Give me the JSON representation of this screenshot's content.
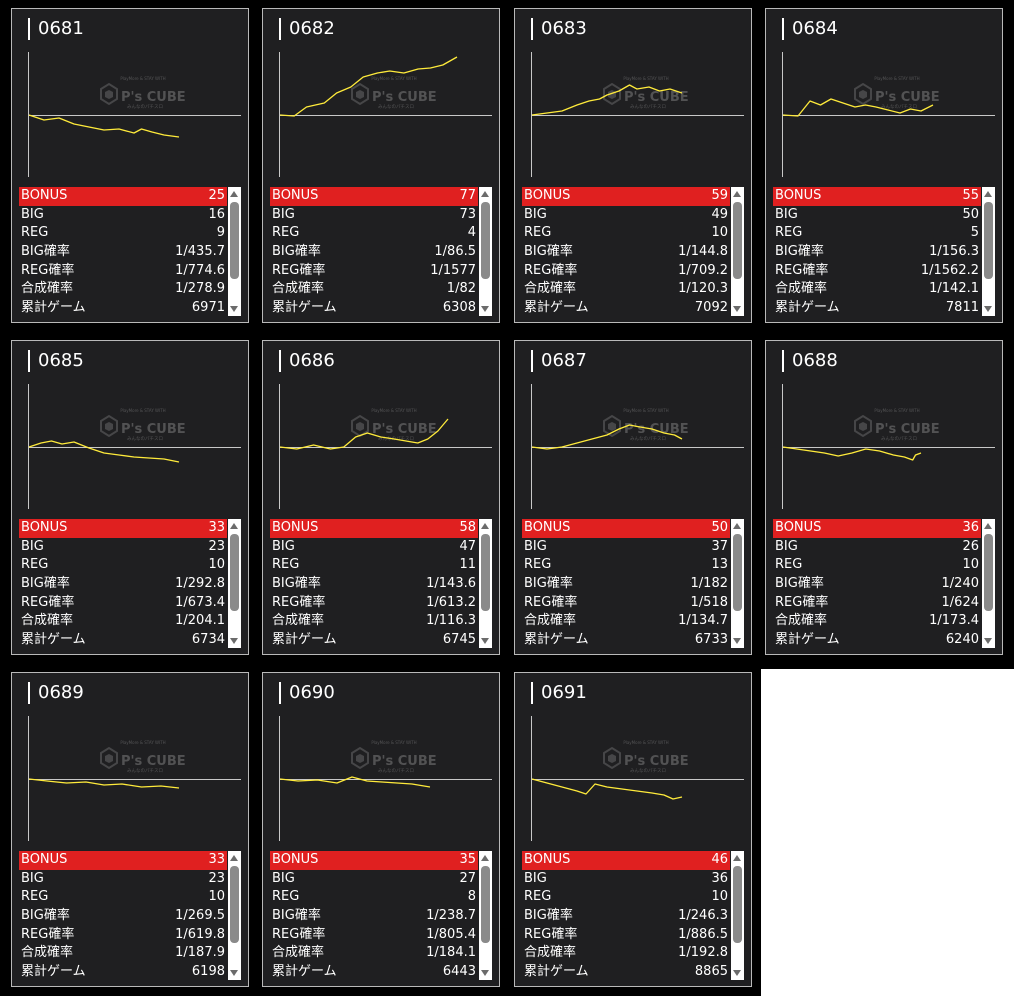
{
  "colors": {
    "background": "#000000",
    "card": "#1f1f21",
    "bonus_row": "#e02020",
    "graph_line": "#ffeb3b",
    "axis": "#c8c8c8"
  },
  "watermark": {
    "brand": "P's CUBE",
    "tagline": "PlayMore & STAY WITH",
    "sub": "みんなのパチスロ"
  },
  "labels": {
    "bonus": "BONUS",
    "big": "BIG",
    "reg": "REG",
    "big_rate": "BIG確率",
    "reg_rate": "REG確率",
    "combined_rate": "合成確率",
    "total_games": "累計ゲーム"
  },
  "machines": [
    {
      "id": "0681",
      "bonus": "25",
      "big": "16",
      "reg": "9",
      "big_rate": "1/435.7",
      "reg_rate": "1/774.6",
      "combined_rate": "1/278.9",
      "total_games": "6971",
      "trend": [
        [
          0,
          0
        ],
        [
          0.1,
          -5
        ],
        [
          0.2,
          -3
        ],
        [
          0.3,
          -9
        ],
        [
          0.4,
          -12
        ],
        [
          0.5,
          -15
        ],
        [
          0.6,
          -14
        ],
        [
          0.7,
          -18
        ],
        [
          0.75,
          -14
        ],
        [
          0.82,
          -17
        ],
        [
          0.9,
          -20
        ],
        [
          1,
          -22
        ]
      ]
    },
    {
      "id": "0682",
      "bonus": "77",
      "big": "73",
      "reg": "4",
      "big_rate": "1/86.5",
      "reg_rate": "1/1577",
      "combined_rate": "1/82",
      "total_games": "6308",
      "trend": [
        [
          0,
          0
        ],
        [
          0.08,
          -1
        ],
        [
          0.15,
          8
        ],
        [
          0.25,
          12
        ],
        [
          0.32,
          22
        ],
        [
          0.4,
          28
        ],
        [
          0.47,
          38
        ],
        [
          0.55,
          42
        ],
        [
          0.62,
          44
        ],
        [
          0.7,
          42
        ],
        [
          0.78,
          46
        ],
        [
          0.85,
          47
        ],
        [
          0.92,
          50
        ],
        [
          1,
          58
        ]
      ]
    },
    {
      "id": "0683",
      "bonus": "59",
      "big": "49",
      "reg": "10",
      "big_rate": "1/144.8",
      "reg_rate": "1/709.2",
      "combined_rate": "1/120.3",
      "total_games": "7092",
      "trend": [
        [
          0,
          0
        ],
        [
          0.1,
          2
        ],
        [
          0.2,
          4
        ],
        [
          0.3,
          10
        ],
        [
          0.38,
          14
        ],
        [
          0.45,
          16
        ],
        [
          0.5,
          20
        ],
        [
          0.58,
          24
        ],
        [
          0.65,
          30
        ],
        [
          0.7,
          26
        ],
        [
          0.78,
          28
        ],
        [
          0.85,
          24
        ],
        [
          0.92,
          26
        ],
        [
          1,
          22
        ]
      ]
    },
    {
      "id": "0684",
      "bonus": "55",
      "big": "50",
      "reg": "5",
      "big_rate": "1/156.3",
      "reg_rate": "1/1562.2",
      "combined_rate": "1/142.1",
      "total_games": "7811",
      "trend": [
        [
          0,
          0
        ],
        [
          0.1,
          -1
        ],
        [
          0.18,
          14
        ],
        [
          0.25,
          10
        ],
        [
          0.32,
          16
        ],
        [
          0.4,
          12
        ],
        [
          0.48,
          8
        ],
        [
          0.55,
          10
        ],
        [
          0.62,
          8
        ],
        [
          0.7,
          5
        ],
        [
          0.78,
          2
        ],
        [
          0.85,
          6
        ],
        [
          0.92,
          4
        ],
        [
          1,
          10
        ]
      ]
    },
    {
      "id": "0685",
      "bonus": "33",
      "big": "23",
      "reg": "10",
      "big_rate": "1/292.8",
      "reg_rate": "1/673.4",
      "combined_rate": "1/204.1",
      "total_games": "6734",
      "trend": [
        [
          0,
          0
        ],
        [
          0.08,
          4
        ],
        [
          0.15,
          6
        ],
        [
          0.22,
          3
        ],
        [
          0.3,
          5
        ],
        [
          0.4,
          -1
        ],
        [
          0.5,
          -6
        ],
        [
          0.6,
          -8
        ],
        [
          0.7,
          -10
        ],
        [
          0.8,
          -11
        ],
        [
          0.9,
          -12
        ],
        [
          1,
          -15
        ]
      ]
    },
    {
      "id": "0686",
      "bonus": "58",
      "big": "47",
      "reg": "11",
      "big_rate": "1/143.6",
      "reg_rate": "1/613.2",
      "combined_rate": "1/116.3",
      "total_games": "6745",
      "trend": [
        [
          0,
          0
        ],
        [
          0.1,
          -2
        ],
        [
          0.2,
          2
        ],
        [
          0.3,
          -2
        ],
        [
          0.38,
          0
        ],
        [
          0.45,
          10
        ],
        [
          0.52,
          14
        ],
        [
          0.6,
          10
        ],
        [
          0.68,
          8
        ],
        [
          0.75,
          6
        ],
        [
          0.82,
          4
        ],
        [
          0.88,
          8
        ],
        [
          0.94,
          16
        ],
        [
          1,
          28
        ]
      ]
    },
    {
      "id": "0687",
      "bonus": "50",
      "big": "37",
      "reg": "13",
      "big_rate": "1/182",
      "reg_rate": "1/518",
      "combined_rate": "1/134.7",
      "total_games": "6733",
      "trend": [
        [
          0,
          0
        ],
        [
          0.1,
          -2
        ],
        [
          0.2,
          0
        ],
        [
          0.3,
          4
        ],
        [
          0.4,
          8
        ],
        [
          0.5,
          12
        ],
        [
          0.58,
          18
        ],
        [
          0.65,
          22
        ],
        [
          0.72,
          20
        ],
        [
          0.8,
          18
        ],
        [
          0.88,
          14
        ],
        [
          0.95,
          12
        ],
        [
          1,
          8
        ]
      ]
    },
    {
      "id": "0688",
      "bonus": "36",
      "big": "26",
      "reg": "10",
      "big_rate": "1/240",
      "reg_rate": "1/624",
      "combined_rate": "1/173.4",
      "total_games": "6240",
      "trend": [
        [
          0,
          0
        ],
        [
          0.1,
          -2
        ],
        [
          0.2,
          -4
        ],
        [
          0.3,
          -6
        ],
        [
          0.4,
          -9
        ],
        [
          0.5,
          -6
        ],
        [
          0.6,
          -2
        ],
        [
          0.7,
          -4
        ],
        [
          0.8,
          -8
        ],
        [
          0.88,
          -10
        ],
        [
          0.94,
          -13
        ],
        [
          0.96,
          -8
        ],
        [
          1,
          -6
        ]
      ]
    },
    {
      "id": "0689",
      "bonus": "33",
      "big": "23",
      "reg": "10",
      "big_rate": "1/269.5",
      "reg_rate": "1/619.8",
      "combined_rate": "1/187.9",
      "total_games": "6198",
      "trend": [
        [
          0,
          0
        ],
        [
          0.12,
          -2
        ],
        [
          0.25,
          -4
        ],
        [
          0.38,
          -3
        ],
        [
          0.5,
          -6
        ],
        [
          0.62,
          -5
        ],
        [
          0.75,
          -8
        ],
        [
          0.88,
          -7
        ],
        [
          1,
          -9
        ]
      ]
    },
    {
      "id": "0690",
      "bonus": "35",
      "big": "27",
      "reg": "8",
      "big_rate": "1/238.7",
      "reg_rate": "1/805.4",
      "combined_rate": "1/184.1",
      "total_games": "6443",
      "trend": [
        [
          0,
          0
        ],
        [
          0.12,
          -2
        ],
        [
          0.25,
          -1
        ],
        [
          0.38,
          -4
        ],
        [
          0.48,
          2
        ],
        [
          0.58,
          -2
        ],
        [
          0.68,
          -3
        ],
        [
          0.78,
          -4
        ],
        [
          0.88,
          -5
        ],
        [
          1,
          -8
        ]
      ]
    },
    {
      "id": "0691",
      "bonus": "46",
      "big": "36",
      "reg": "10",
      "big_rate": "1/246.3",
      "reg_rate": "1/886.5",
      "combined_rate": "1/192.8",
      "total_games": "8865",
      "trend": [
        [
          0,
          0
        ],
        [
          0.1,
          -4
        ],
        [
          0.2,
          -8
        ],
        [
          0.3,
          -12
        ],
        [
          0.36,
          -15
        ],
        [
          0.42,
          -5
        ],
        [
          0.5,
          -8
        ],
        [
          0.6,
          -10
        ],
        [
          0.7,
          -12
        ],
        [
          0.8,
          -14
        ],
        [
          0.88,
          -16
        ],
        [
          0.94,
          -20
        ],
        [
          1,
          -18
        ]
      ]
    }
  ]
}
